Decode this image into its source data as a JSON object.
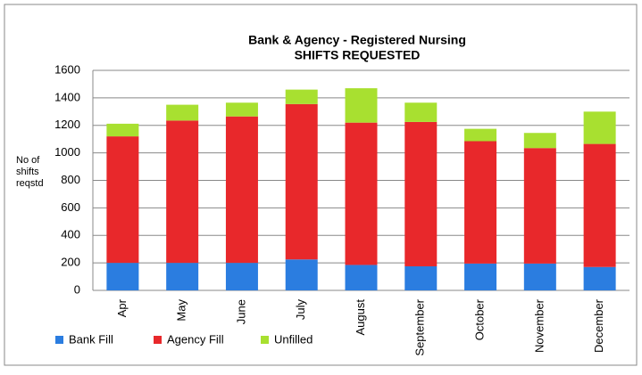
{
  "chart_data": {
    "type": "stacked_bar",
    "title": "Bank & Agency - Registered Nursing",
    "subtitle": "SHIFTS REQUESTED",
    "y_label": "No of shifts reqstd",
    "categories": [
      "Apr",
      "May",
      "June",
      "July",
      "August",
      "September",
      "October",
      "November",
      "December"
    ],
    "series": [
      {
        "name": "Bank Fill",
        "color": "#2b7de0",
        "values": [
          200,
          200,
          200,
          225,
          185,
          175,
          195,
          195,
          170
        ]
      },
      {
        "name": "Agency Fill",
        "color": "#e8282b",
        "values": [
          920,
          1035,
          1065,
          1130,
          1035,
          1050,
          890,
          840,
          895
        ]
      },
      {
        "name": "Unfilled",
        "color": "#a8e030",
        "values": [
          92,
          115,
          100,
          105,
          250,
          140,
          90,
          110,
          235
        ]
      }
    ],
    "ylim": [
      0,
      1600
    ],
    "yticks": [
      0,
      200,
      400,
      600,
      800,
      1000,
      1200,
      1400,
      1600
    ],
    "grid": true,
    "legend": "bottom"
  }
}
